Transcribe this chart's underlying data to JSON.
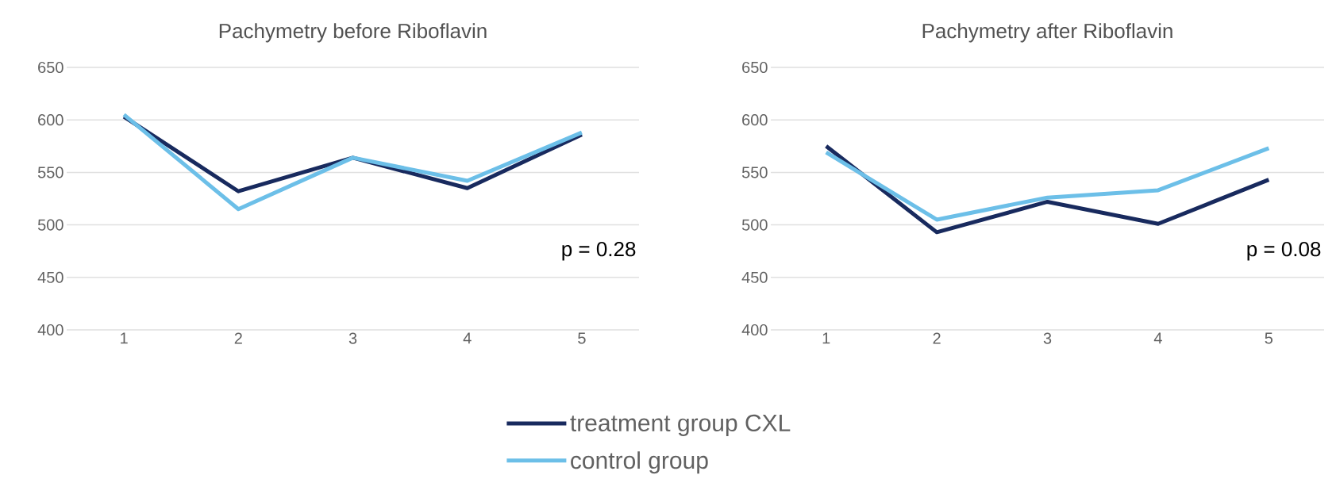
{
  "chart_data": [
    {
      "type": "line",
      "title": "Pachymetry before Riboflavin",
      "categories": [
        "1",
        "2",
        "3",
        "4",
        "5"
      ],
      "series": [
        {
          "name": "treatment group CXL",
          "color": "#182a5e",
          "values": [
            603,
            532,
            564,
            535,
            586
          ]
        },
        {
          "name": "control group",
          "color": "#6cbfe8",
          "values": [
            605,
            515,
            564,
            542,
            588
          ]
        }
      ],
      "ylim": [
        400,
        650
      ],
      "yticks": [
        400,
        450,
        500,
        550,
        600,
        650
      ],
      "grid": "y",
      "legend": "bottom",
      "annotations": [
        "p = 0.28"
      ]
    },
    {
      "type": "line",
      "title": "Pachymetry after Riboflavin",
      "categories": [
        "1",
        "2",
        "3",
        "4",
        "5"
      ],
      "series": [
        {
          "color": "#182a5e",
          "values": [
            575,
            493,
            522,
            501,
            543
          ]
        },
        {
          "color": "#6cbfe8",
          "values": [
            569,
            505,
            526,
            533,
            573
          ]
        }
      ],
      "ylim": [
        400,
        650
      ],
      "yticks": [
        400,
        450,
        500,
        550,
        600,
        650
      ],
      "grid": "y",
      "annotations": [
        "p = 0.08"
      ]
    }
  ]
}
